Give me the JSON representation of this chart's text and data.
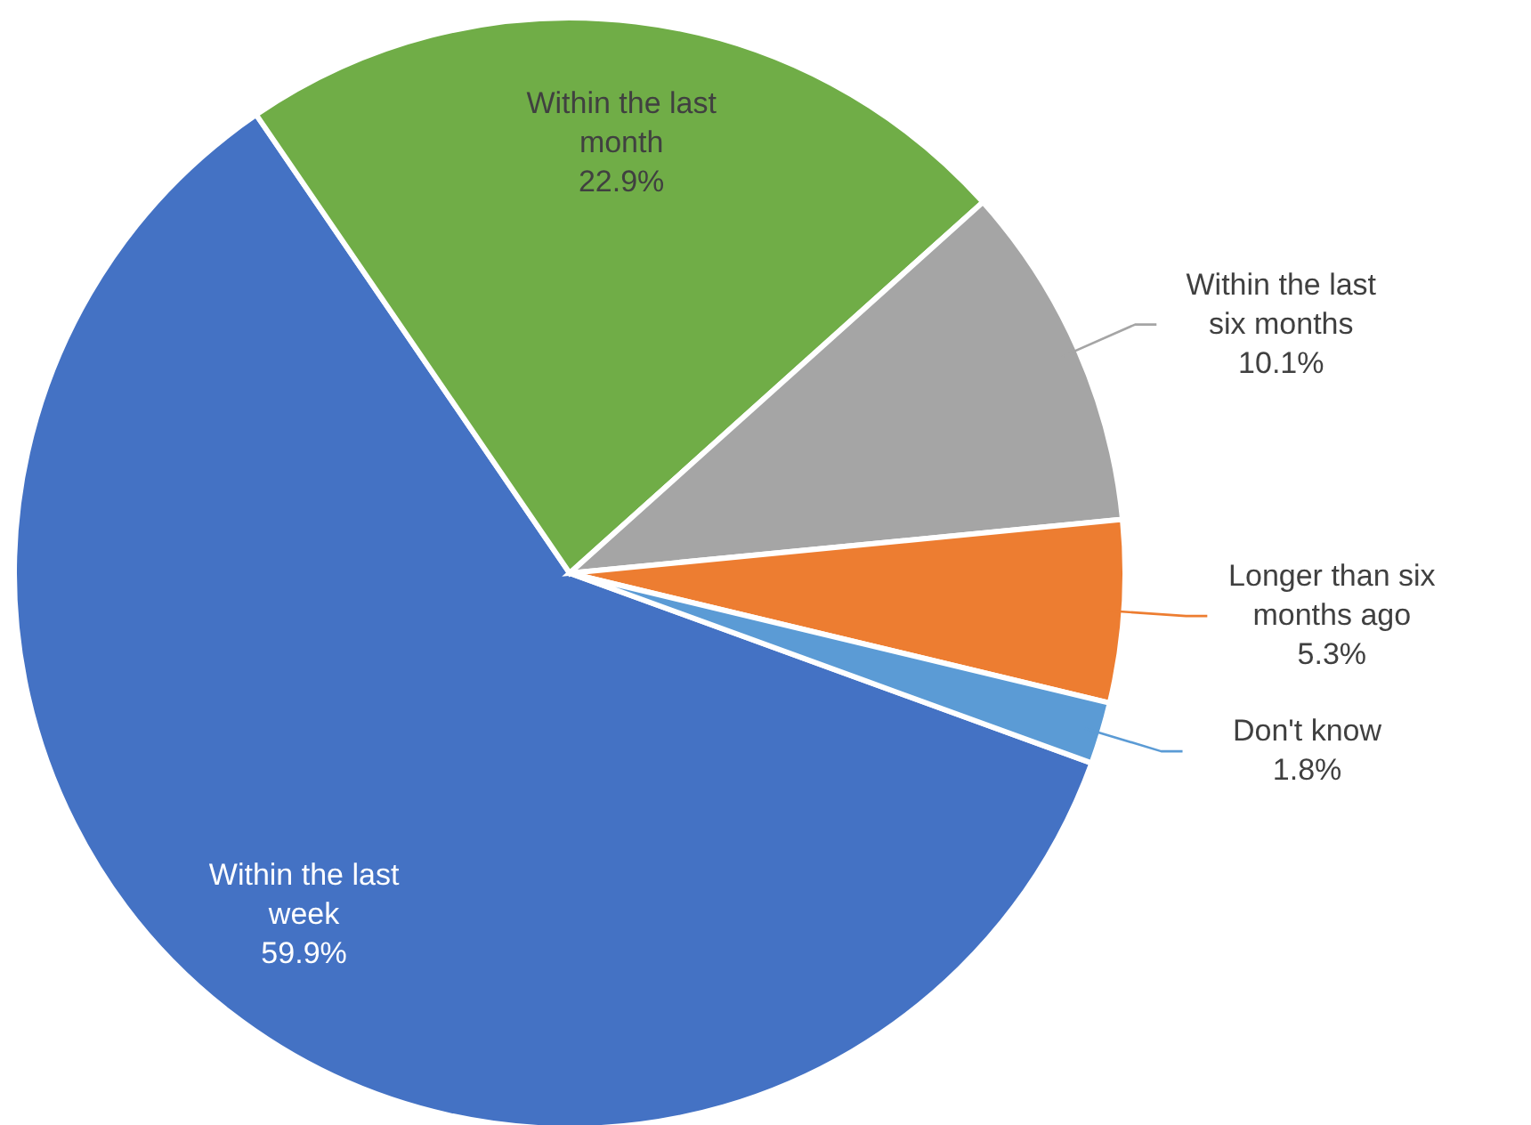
{
  "chart_data": {
    "type": "pie",
    "categories": [
      "Within the last week",
      "Within the last month",
      "Within the last six months",
      "Longer than six months ago",
      "Don't know"
    ],
    "values": [
      59.9,
      22.9,
      10.1,
      5.3,
      1.8
    ],
    "colors": [
      "#4472c4",
      "#70ad47",
      "#a5a5a5",
      "#ed7d31",
      "#5b9bd5"
    ],
    "value_labels": [
      "59.9%",
      "22.9%",
      "10.1%",
      "5.3%",
      "1.8%"
    ]
  }
}
